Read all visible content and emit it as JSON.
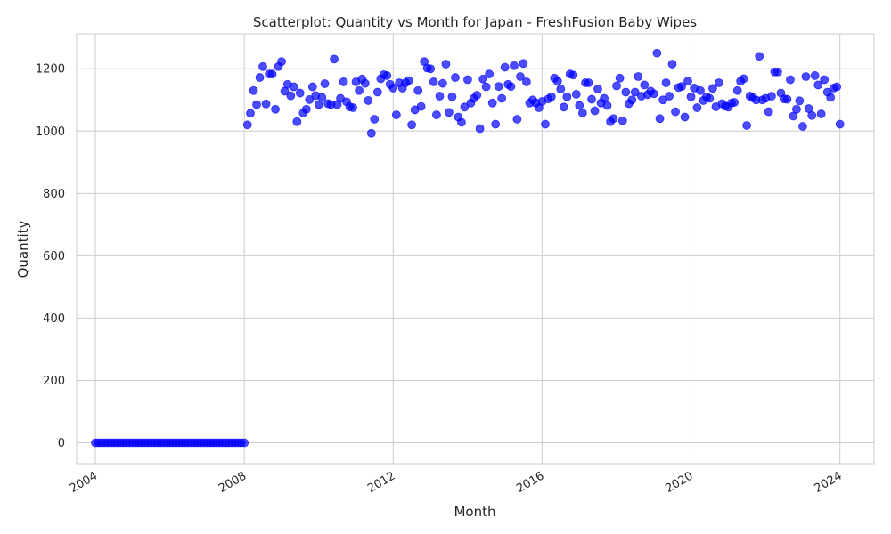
{
  "chart_data": {
    "type": "scatter",
    "title": "Scatterplot: Quantity vs Month for Japan - FreshFusion Baby Wipes",
    "xlabel": "Month",
    "ylabel": "Quantity",
    "xlim": [
      "2003-07-01",
      "2024-12-01"
    ],
    "ylim": [
      -67,
      1312
    ],
    "x_ticks": [
      "2004",
      "2008",
      "2012",
      "2016",
      "2020",
      "2024"
    ],
    "y_ticks": [
      0,
      200,
      400,
      600,
      800,
      1000,
      1200
    ],
    "grid": true,
    "marker_color": "#0000ff",
    "marker_opacity": 0.7,
    "x_start": "2004-01",
    "y": [
      0,
      0,
      0,
      0,
      0,
      0,
      0,
      0,
      0,
      0,
      0,
      0,
      0,
      0,
      0,
      0,
      0,
      0,
      0,
      0,
      0,
      0,
      0,
      0,
      0,
      0,
      0,
      0,
      0,
      0,
      0,
      0,
      0,
      0,
      0,
      0,
      0,
      0,
      0,
      0,
      0,
      0,
      0,
      0,
      0,
      0,
      0,
      0,
      0,
      1020,
      1057,
      1130,
      1085,
      1172,
      1207,
      1087,
      1183,
      1183,
      1070,
      1207,
      1223,
      1128,
      1150,
      1113,
      1142,
      1030,
      1122,
      1058,
      1070,
      1101,
      1142,
      1114,
      1085,
      1108,
      1152,
      1088,
      1085,
      1231,
      1085,
      1105,
      1158,
      1094,
      1078,
      1075,
      1158,
      1130,
      1167,
      1153,
      1098,
      993,
      1038,
      1125,
      1168,
      1181,
      1178,
      1150,
      1138,
      1052,
      1155,
      1138,
      1155,
      1162,
      1020,
      1068,
      1130,
      1079,
      1223,
      1202,
      1200,
      1158,
      1052,
      1112,
      1153,
      1215,
      1060,
      1110,
      1172,
      1045,
      1028,
      1077,
      1165,
      1090,
      1105,
      1115,
      1008,
      1167,
      1142,
      1183,
      1090,
      1022,
      1143,
      1105,
      1205,
      1150,
      1143,
      1210,
      1038,
      1175,
      1217,
      1158,
      1090,
      1100,
      1090,
      1075,
      1095,
      1022,
      1103,
      1110,
      1170,
      1160,
      1135,
      1077,
      1110,
      1183,
      1180,
      1118,
      1082,
      1058,
      1155,
      1155,
      1102,
      1065,
      1135,
      1090,
      1105,
      1082,
      1030,
      1040,
      1145,
      1170,
      1033,
      1125,
      1088,
      1100,
      1125,
      1175,
      1112,
      1148,
      1117,
      1128,
      1120,
      1250,
      1040,
      1100,
      1155,
      1112,
      1215,
      1062,
      1140,
      1143,
      1045,
      1160,
      1110,
      1138,
      1075,
      1130,
      1098,
      1110,
      1105,
      1137,
      1078,
      1155,
      1088,
      1080,
      1077,
      1090,
      1092,
      1130,
      1160,
      1168,
      1018,
      1112,
      1107,
      1100,
      1240,
      1100,
      1105,
      1062,
      1112,
      1190,
      1190,
      1122,
      1103,
      1102,
      1165,
      1048,
      1070,
      1097,
      1015,
      1175,
      1072,
      1050,
      1178,
      1148,
      1055,
      1165,
      1125,
      1108,
      1138,
      1142,
      1022
    ]
  }
}
